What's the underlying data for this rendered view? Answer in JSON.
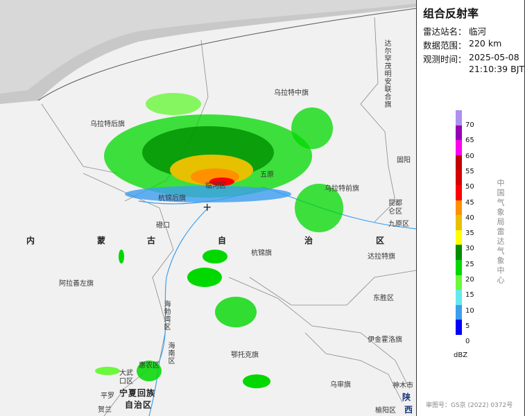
{
  "panel": {
    "title": "组合反射率",
    "station_label": "雷达站名：",
    "station": "临河",
    "range_label": "数据范围：",
    "range": "220 km",
    "time_label": "观测时间：",
    "date": "2025-05-08",
    "time": "21:10:39 BJT",
    "organization": "中国气象局雷达气象中心",
    "credit": "审图号：GS京 (2022) 0372号"
  },
  "legend": {
    "unit": "dBZ",
    "ticks": [
      "70",
      "65",
      "60",
      "55",
      "50",
      "45",
      "40",
      "35",
      "30",
      "25",
      "20",
      "15",
      "10",
      "5",
      "0"
    ],
    "colors": [
      "#ad90f0",
      "#9600b4",
      "#ff00f0",
      "#c00000",
      "#d60000",
      "#ff0000",
      "#ff9000",
      "#e7c000",
      "#ffff00",
      "#008e00",
      "#00d800",
      "#6cf83c",
      "#66e8ec",
      "#3c9ef0",
      "#0000f6"
    ]
  },
  "map": {
    "radar_marker_icon": "crosshair-icon",
    "labels": {
      "wltzq": "乌拉特中旗",
      "wlthq": "乌拉特后旗",
      "dehmm": "达尔罕茂明安联合旗",
      "guyang": "固阳",
      "wuyuan": "五原",
      "wltqq": "乌拉特前旗",
      "kundulun": "昆都仑区",
      "jiuyuan": "九原区",
      "linhe": "临河区",
      "hjhq": "杭锦后旗",
      "dengkou": "磴口",
      "hangjin": "杭锦旗",
      "dalate": "达拉特旗",
      "alszq": "阿拉善左旗",
      "dongsheng": "东胜区",
      "haibowan": "海勃湾区",
      "hainan": "海南区",
      "yjhl": "伊金霍洛旗",
      "etuoke": "鄂托克旗",
      "huinong": "惠农区",
      "dawukou": "大武口区",
      "pingluo": "平罗",
      "helan": "贺兰",
      "wushen": "乌审旗",
      "shenmu": "神木市",
      "yuyang": "榆阳区"
    },
    "regions": {
      "nm": [
        "内",
        "蒙",
        "古",
        "自",
        "治",
        "区"
      ],
      "nx1": "宁夏回族",
      "nx2": "自治区",
      "sx1": "陕",
      "sx2": "西"
    }
  }
}
